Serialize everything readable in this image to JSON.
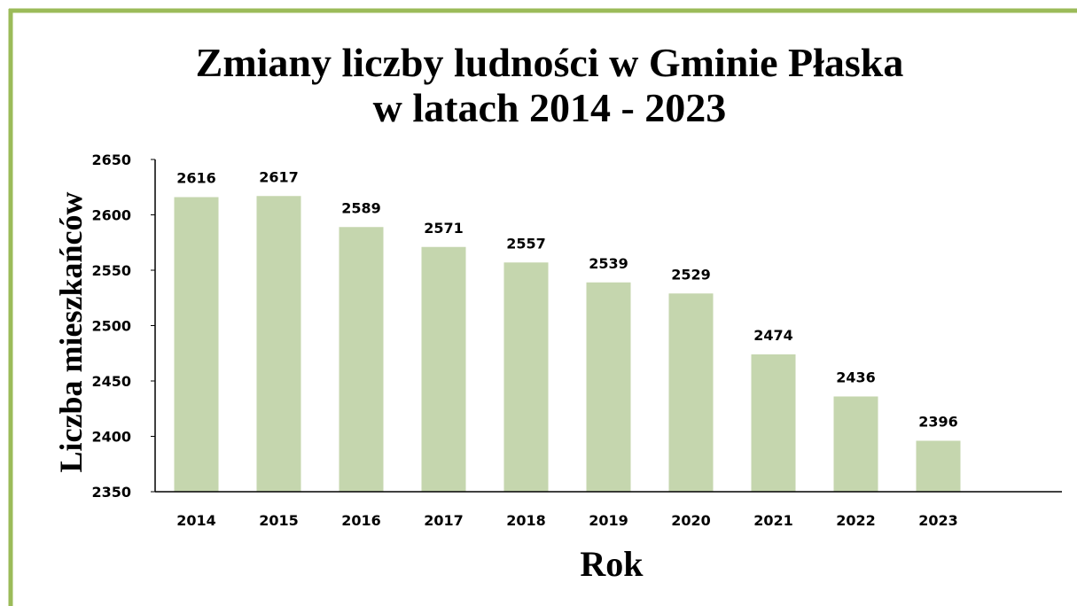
{
  "chart_data": {
    "type": "bar",
    "title": [
      "Zmiany liczby ludności w Gminie Płaska",
      "w latach 2014 - 2023"
    ],
    "x_label": "Rok",
    "y_label": "Liczba mieszkańców",
    "categories": [
      "2014",
      "2015",
      "2016",
      "2017",
      "2018",
      "2019",
      "2020",
      "2021",
      "2022",
      "2023",
      null
    ],
    "values": [
      2616,
      2617,
      2589,
      2571,
      2557,
      2539,
      2529,
      2474,
      2436,
      2396,
      null
    ],
    "color": "#c5d6ae",
    "ylim": [
      2350,
      2650
    ],
    "yticks": [
      2350,
      2400,
      2450,
      2500,
      2550,
      2600,
      2650
    ],
    "grid": false,
    "data_labels": true
  }
}
